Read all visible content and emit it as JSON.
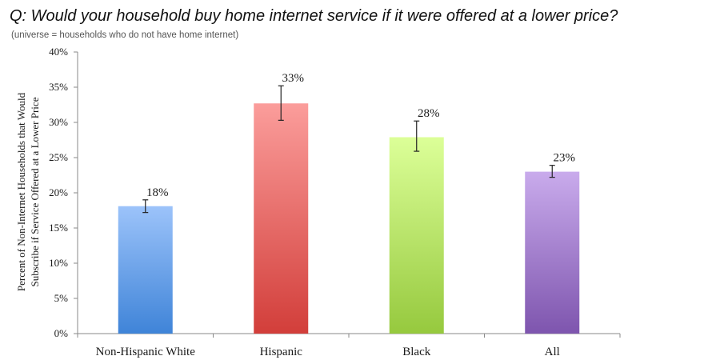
{
  "title": "Q: Would your household buy home internet service if it were offered at a lower price?",
  "subtitle": "(universe = households who do not have home internet)",
  "chart_data": {
    "type": "bar",
    "ylabel_lines": [
      "Percent of Non-Internet Households that Would",
      "Subscribe if Service Offered at a Lower Price"
    ],
    "xlabel": "",
    "ylim": [
      0,
      40
    ],
    "yticks": [
      0,
      5,
      10,
      15,
      20,
      25,
      30,
      35,
      40
    ],
    "ytick_suffix": "%",
    "grid": false,
    "legend": "none",
    "categories": [
      "Non-Hispanic White",
      "Hispanic",
      "Black",
      "All"
    ],
    "values": [
      18.1,
      32.7,
      27.9,
      23.0
    ],
    "data_labels": [
      "18%",
      "33%",
      "28%",
      "23%"
    ],
    "error_bars": [
      {
        "low": 17.2,
        "high": 19.0
      },
      {
        "low": 30.3,
        "high": 35.2
      },
      {
        "low": 25.9,
        "high": 30.2
      },
      {
        "low": 22.2,
        "high": 23.9
      }
    ],
    "colors": [
      {
        "top": "#9cc3fa",
        "bottom": "#3f84d8"
      },
      {
        "top": "#fb9d9b",
        "bottom": "#d23e3a"
      },
      {
        "top": "#dcff98",
        "bottom": "#96c93e"
      },
      {
        "top": "#c9abec",
        "bottom": "#7e55ae"
      }
    ]
  }
}
